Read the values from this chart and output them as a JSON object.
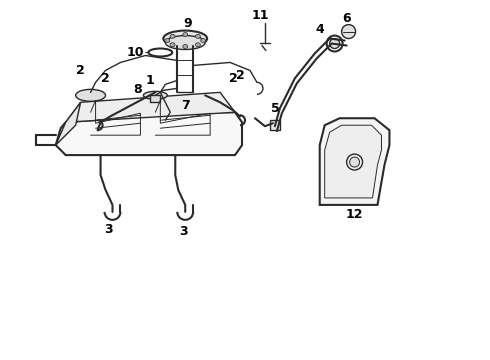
{
  "background_color": "#ffffff",
  "line_color": "#2a2a2a",
  "label_color": "#000000",
  "label_fontsize": 8.5,
  "label_fontweight": "bold",
  "figsize": [
    4.9,
    3.6
  ],
  "dpi": 100
}
